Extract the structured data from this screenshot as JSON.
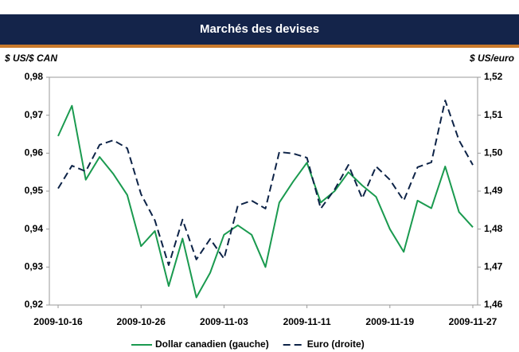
{
  "chart_data": {
    "type": "line",
    "title": "Marchés des devises",
    "y_label": "$ US/$ CAN",
    "y2_label": "$ US/euro",
    "categories": [
      "2009-10-16",
      null,
      null,
      null,
      null,
      null,
      "2009-10-26",
      null,
      null,
      null,
      null,
      null,
      "2009-11-03",
      null,
      null,
      null,
      null,
      null,
      "2009-11-11",
      null,
      null,
      null,
      null,
      null,
      "2009-11-19",
      null,
      null,
      null,
      null,
      null,
      "2009-11-27"
    ],
    "series": [
      {
        "name": "Dollar canadien (gauche)",
        "color": "#1a9a4f",
        "dash": false,
        "axis": "y",
        "values": [
          0.9645,
          0.9725,
          0.953,
          0.959,
          0.9545,
          0.949,
          0.9355,
          0.9395,
          0.925,
          0.9375,
          0.922,
          0.9285,
          0.9385,
          0.941,
          0.9385,
          0.93,
          0.947,
          0.9525,
          0.9575,
          0.947,
          0.95,
          0.955,
          0.9515,
          0.9485,
          0.94,
          0.934,
          0.9475,
          0.9455,
          0.9565,
          0.9445,
          0.9405
        ]
      },
      {
        "name": "Euro (droite)",
        "color": "#0d2347",
        "dash": true,
        "axis": "y2",
        "values": [
          1.4907,
          1.4967,
          1.4952,
          1.5022,
          1.5034,
          1.5013,
          1.4892,
          1.4823,
          1.4705,
          1.4825,
          1.472,
          1.4774,
          1.4722,
          1.4862,
          1.4875,
          1.4854,
          1.5003,
          1.4999,
          1.4988,
          1.4854,
          1.4904,
          1.4969,
          1.4881,
          1.4965,
          1.493,
          1.4875,
          1.4963,
          1.4976,
          1.5139,
          1.5034,
          1.4969
        ]
      }
    ],
    "ylim": [
      0.92,
      0.98
    ],
    "yticks": [
      {
        "value": 0.92,
        "label": "0,92"
      },
      {
        "value": 0.93,
        "label": "0,93"
      },
      {
        "value": 0.94,
        "label": "0,94"
      },
      {
        "value": 0.95,
        "label": "0,95"
      },
      {
        "value": 0.96,
        "label": "0,96"
      },
      {
        "value": 0.97,
        "label": "0,97"
      },
      {
        "value": 0.98,
        "label": "0,98"
      }
    ],
    "y2lim": [
      1.46,
      1.52
    ],
    "y2ticks": [
      {
        "value": 1.46,
        "label": "1,46"
      },
      {
        "value": 1.47,
        "label": "1,47"
      },
      {
        "value": 1.48,
        "label": "1,48"
      },
      {
        "value": 1.49,
        "label": "1,49"
      },
      {
        "value": 1.5,
        "label": "1,50"
      },
      {
        "value": 1.51,
        "label": "1,51"
      },
      {
        "value": 1.52,
        "label": "1,52"
      }
    ],
    "grid": false,
    "legend": "bottom"
  }
}
